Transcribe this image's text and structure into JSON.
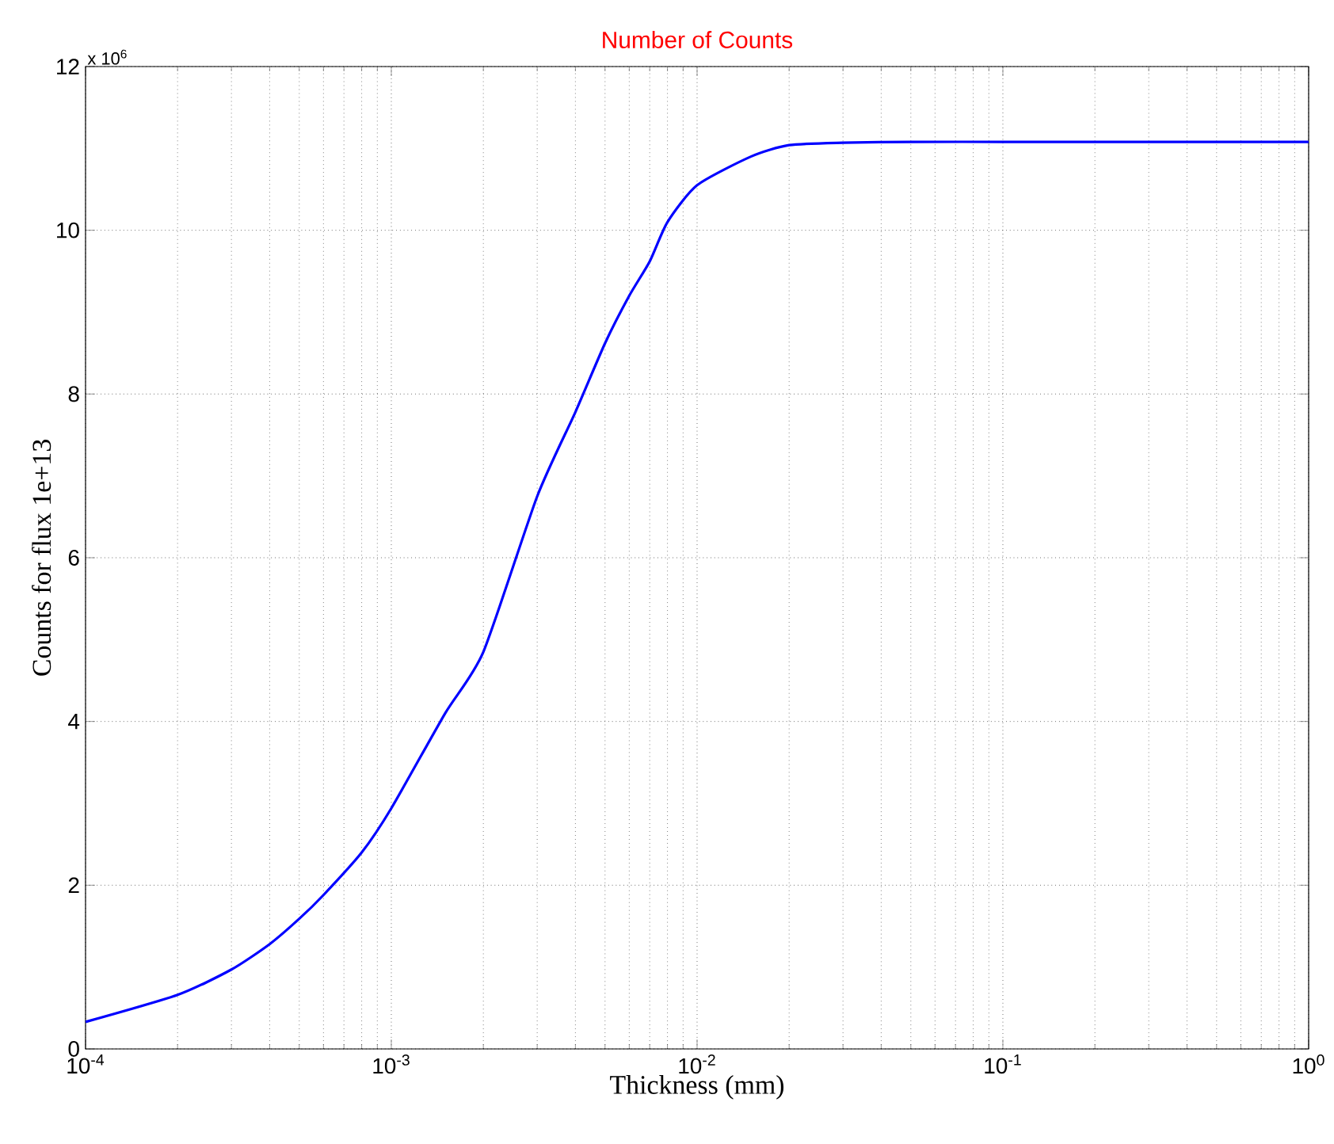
{
  "chart_data": {
    "type": "line",
    "title": "Number of Counts",
    "xlabel": "Thickness (mm)",
    "ylabel": "Counts for flux  1e+13",
    "annotations": [
      "x 10$^{6}$"
    ],
    "x": [
      0.0001,
      0.0002,
      0.0003,
      0.0004,
      0.0005,
      0.0006,
      0.0008,
      0.001,
      0.0015,
      0.002,
      0.003,
      0.004,
      0.005,
      0.006,
      0.007,
      0.008,
      0.01,
      0.015,
      0.02,
      0.03,
      0.05,
      0.1,
      0.3,
      1
    ],
    "series": [
      {
        "color": "#0000ff",
        "values": [
          0.33,
          0.66,
          0.97,
          1.28,
          1.59,
          1.88,
          2.4,
          2.94,
          4.1,
          4.85,
          6.75,
          7.78,
          8.62,
          9.2,
          9.62,
          10.1,
          10.55,
          10.9,
          11.04,
          11.07,
          11.08,
          11.08,
          11.08,
          11.08
        ]
      }
    ],
    "log": "x",
    "grid": true,
    "line_style": "solid",
    "marker": "none",
    "xlim": [
      0.0001,
      1
    ],
    "ylim": [
      0,
      12
    ],
    "xticks": [
      {
        "value": 0.0001,
        "label": "10$^{-4}$"
      },
      {
        "value": 0.001,
        "label": "10$^{-3}$"
      },
      {
        "value": 0.01,
        "label": "10$^{-2}$"
      },
      {
        "value": 0.1,
        "label": "10$^{-1}$"
      },
      {
        "value": 1,
        "label": "10$^{0}$"
      }
    ],
    "yticks": [
      0,
      2,
      4,
      6,
      8,
      10,
      12
    ]
  }
}
